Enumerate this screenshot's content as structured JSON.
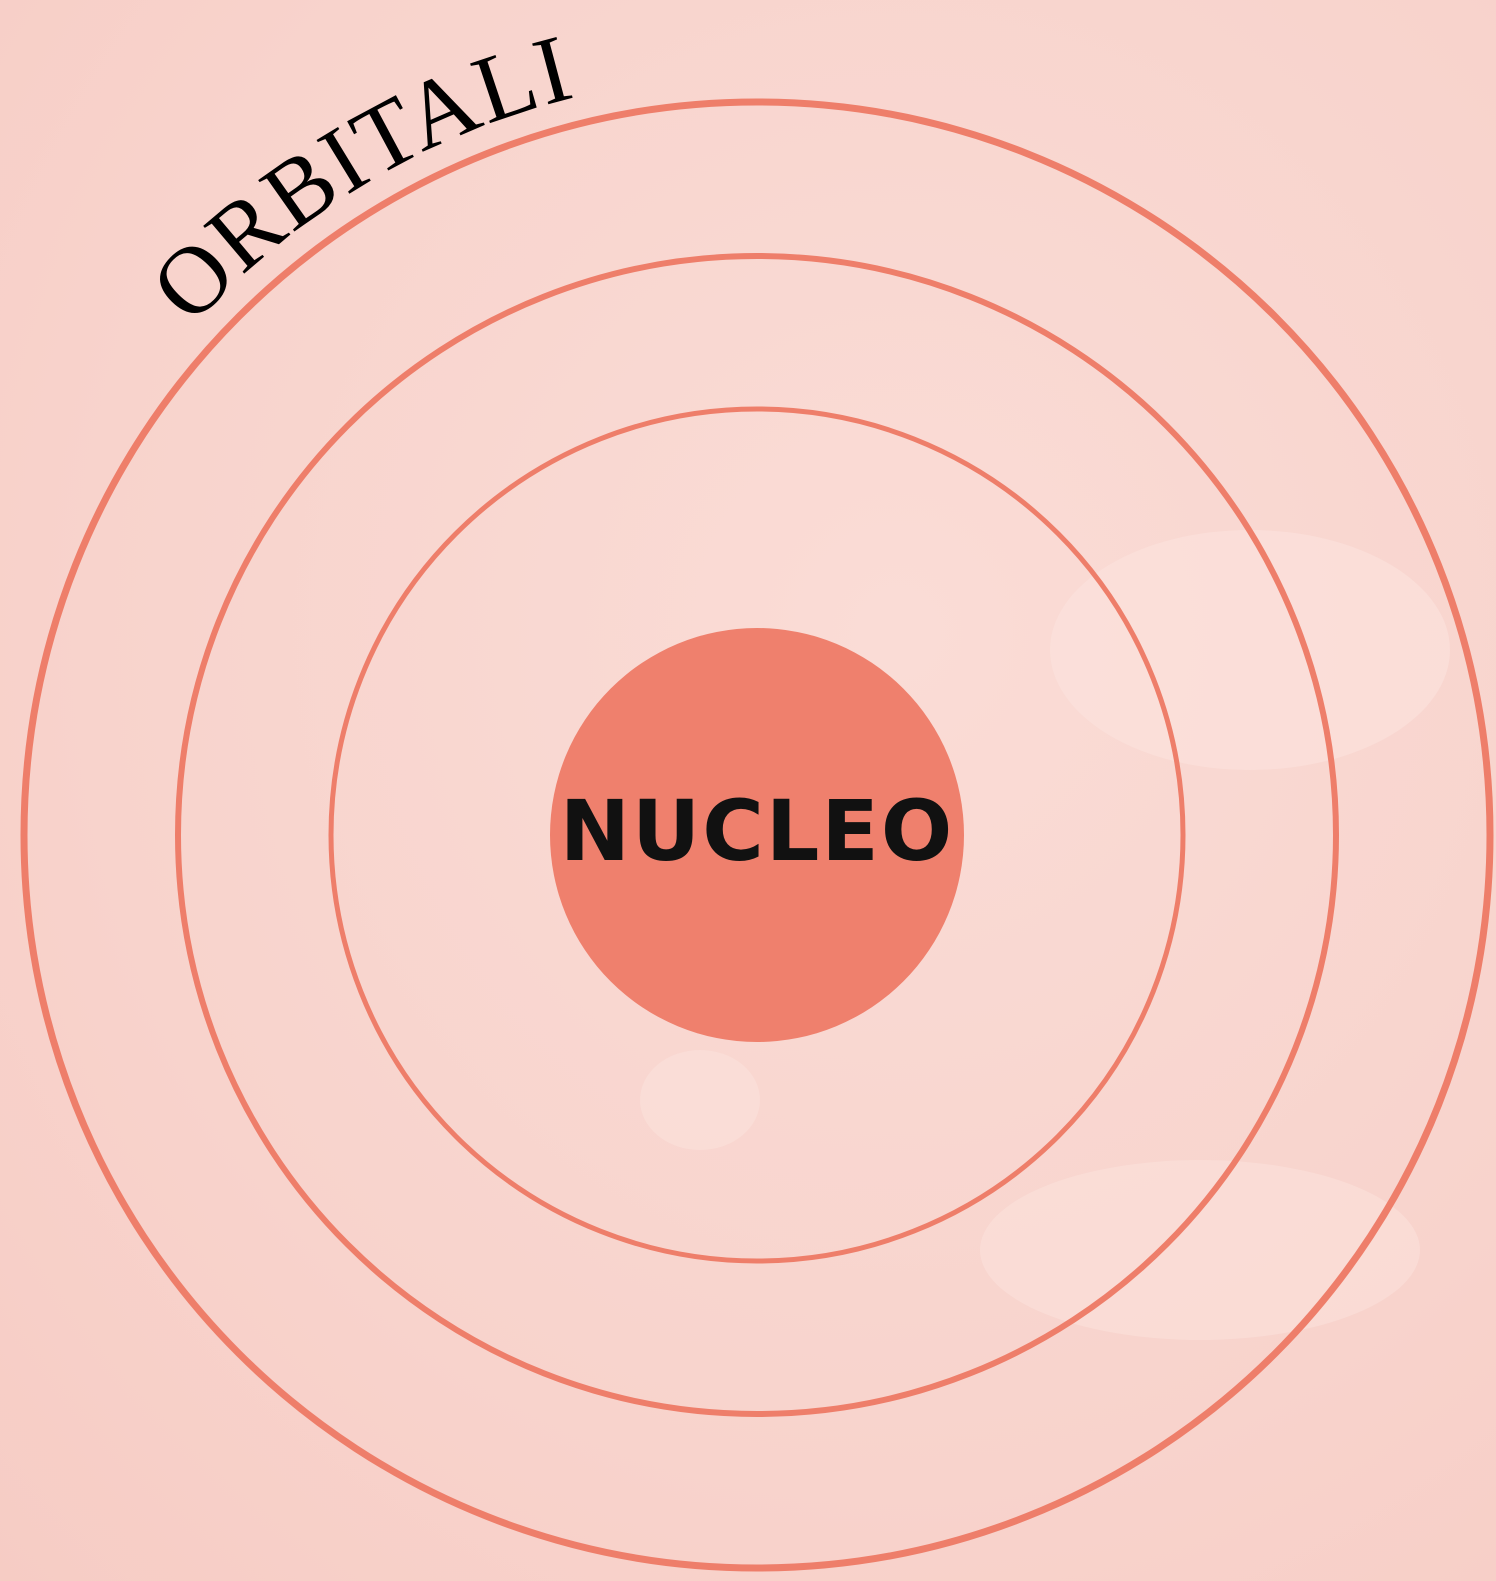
{
  "orbit_label": "ORBITALI",
  "nucleus_label": "NUCLEO"
}
